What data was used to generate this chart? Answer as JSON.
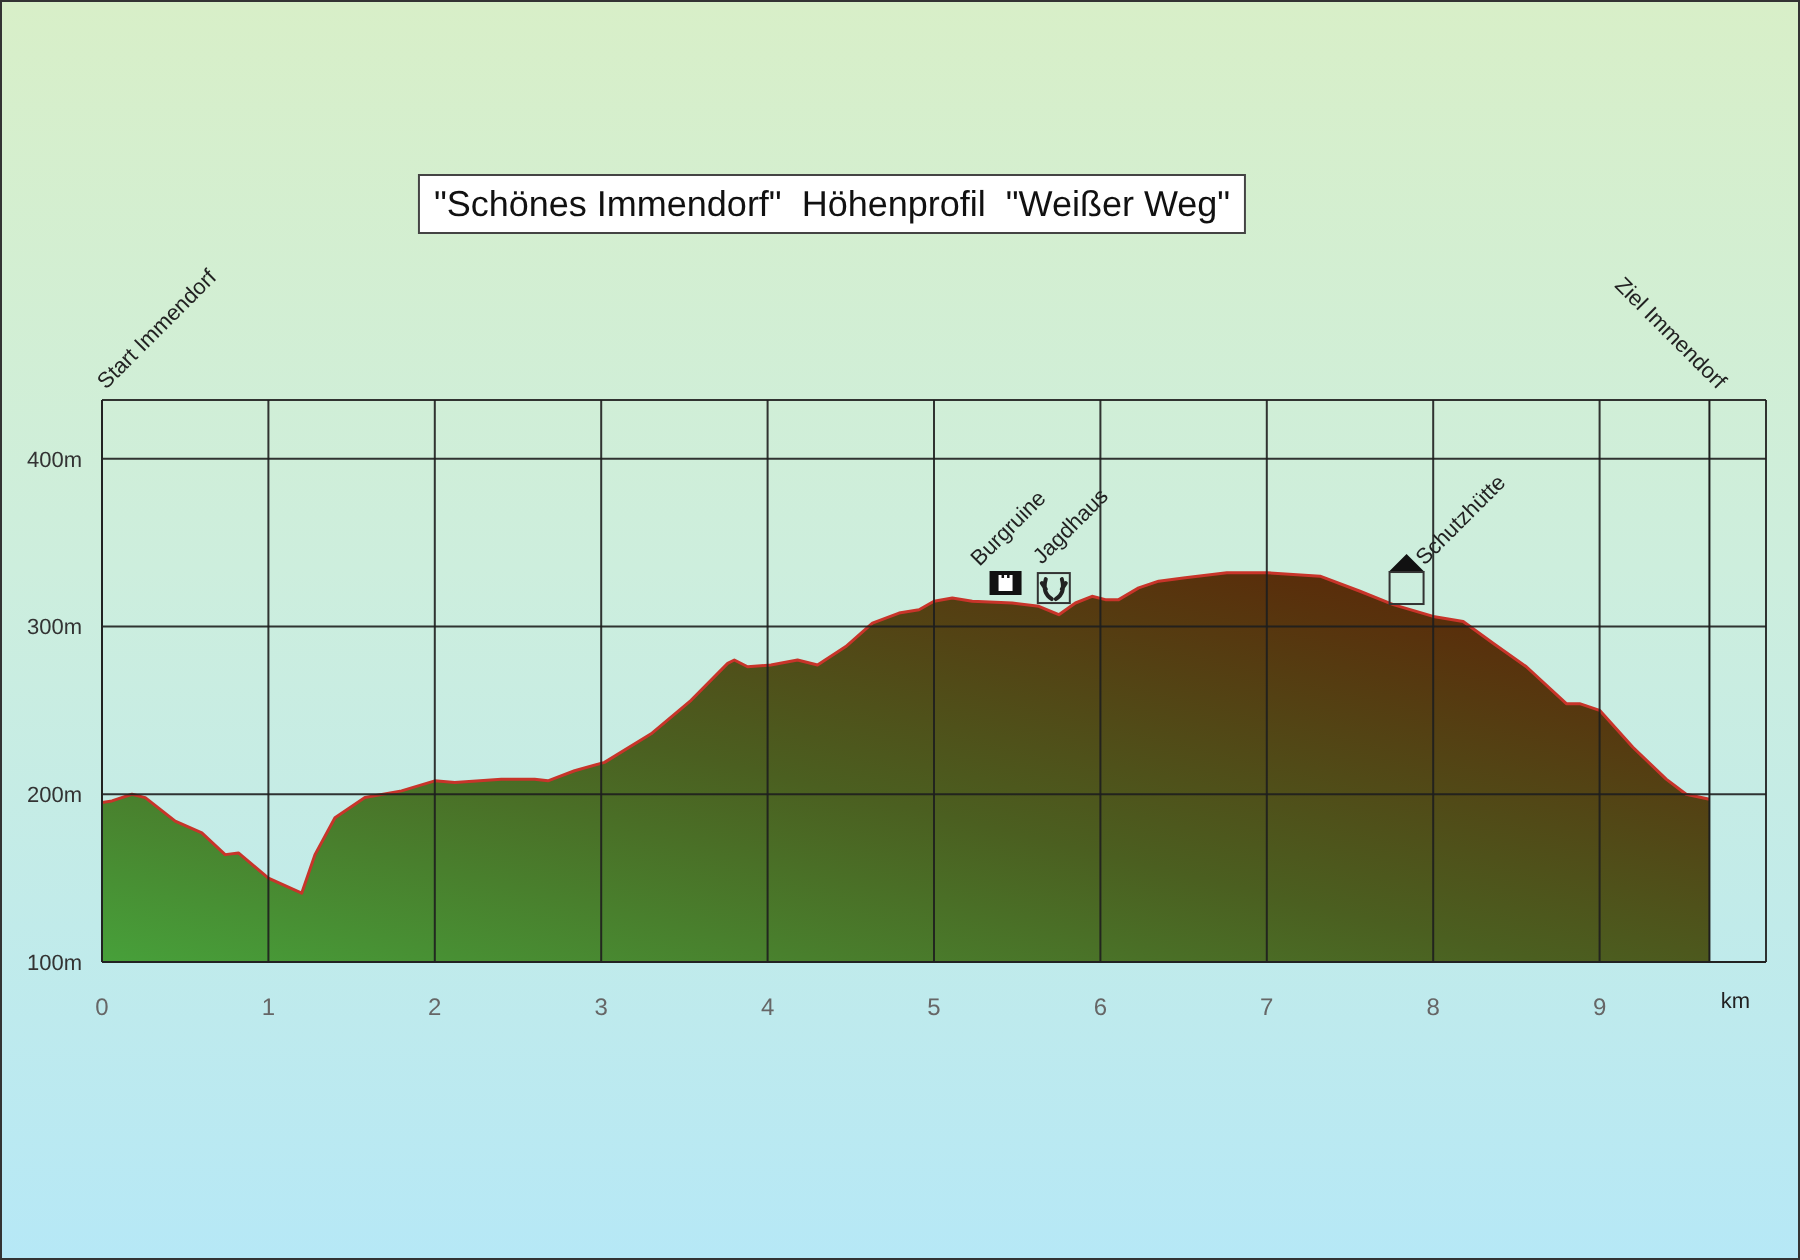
{
  "chart_data": {
    "type": "area",
    "title": "\"Schönes Immendorf\"  Höhenprofil  \"Weißer Weg\"",
    "xlabel": "km",
    "x": [
      0,
      0.06,
      0.18,
      0.26,
      0.44,
      0.6,
      0.74,
      0.82,
      1.0,
      1.2,
      1.28,
      1.4,
      1.58,
      1.8,
      2.0,
      2.12,
      2.4,
      2.6,
      2.68,
      2.84,
      3.02,
      3.3,
      3.54,
      3.76,
      3.8,
      3.88,
      4.02,
      4.18,
      4.3,
      4.47,
      4.63,
      4.79,
      4.91,
      5.0,
      5.11,
      5.23,
      5.47,
      5.63,
      5.75,
      5.85,
      5.95,
      6.03,
      6.11,
      6.23,
      6.35,
      6.51,
      6.76,
      7.0,
      7.32,
      7.56,
      7.76,
      8.0,
      8.18,
      8.36,
      8.56,
      8.8,
      8.88,
      9.0,
      9.2,
      9.4,
      9.52,
      9.66
    ],
    "values": [
      195,
      196,
      200,
      198,
      184,
      177,
      164,
      165,
      150,
      141,
      164,
      186,
      198,
      202,
      208,
      207,
      209,
      209,
      208,
      214,
      219,
      236,
      256,
      278,
      280,
      276,
      277,
      280,
      277,
      288,
      302,
      308,
      310,
      315,
      317,
      315,
      314,
      312,
      307,
      314,
      318,
      316,
      316,
      323,
      327,
      329,
      332,
      332,
      330,
      321,
      313,
      306,
      303,
      290,
      276,
      254,
      254,
      250,
      228,
      209,
      200,
      197
    ],
    "color": "#c8342a",
    "xlim": [
      0,
      10
    ],
    "xticks": [
      0,
      1,
      2,
      3,
      4,
      5,
      6,
      7,
      8,
      9
    ],
    "ylim": [
      100,
      435
    ],
    "yticks": [
      {
        "value": 100,
        "label": "100m"
      },
      {
        "value": 200,
        "label": "200m"
      },
      {
        "value": 300,
        "label": "300m"
      },
      {
        "value": 400,
        "label": "400m"
      }
    ],
    "grid": true,
    "ref_lines": [
      {
        "axis": "x",
        "value": 0,
        "label": "Start Immendorf"
      },
      {
        "axis": "x",
        "value": 9.66,
        "label": "Ziel Immendorf"
      }
    ],
    "annotations": [
      {
        "text": "Burgruine",
        "x": 5.43,
        "y": 314
      },
      {
        "text": "Jagdhaus",
        "x": 5.72,
        "y": 308
      },
      {
        "text": "Schutzhütte",
        "x": 7.84,
        "y": 311
      }
    ]
  }
}
